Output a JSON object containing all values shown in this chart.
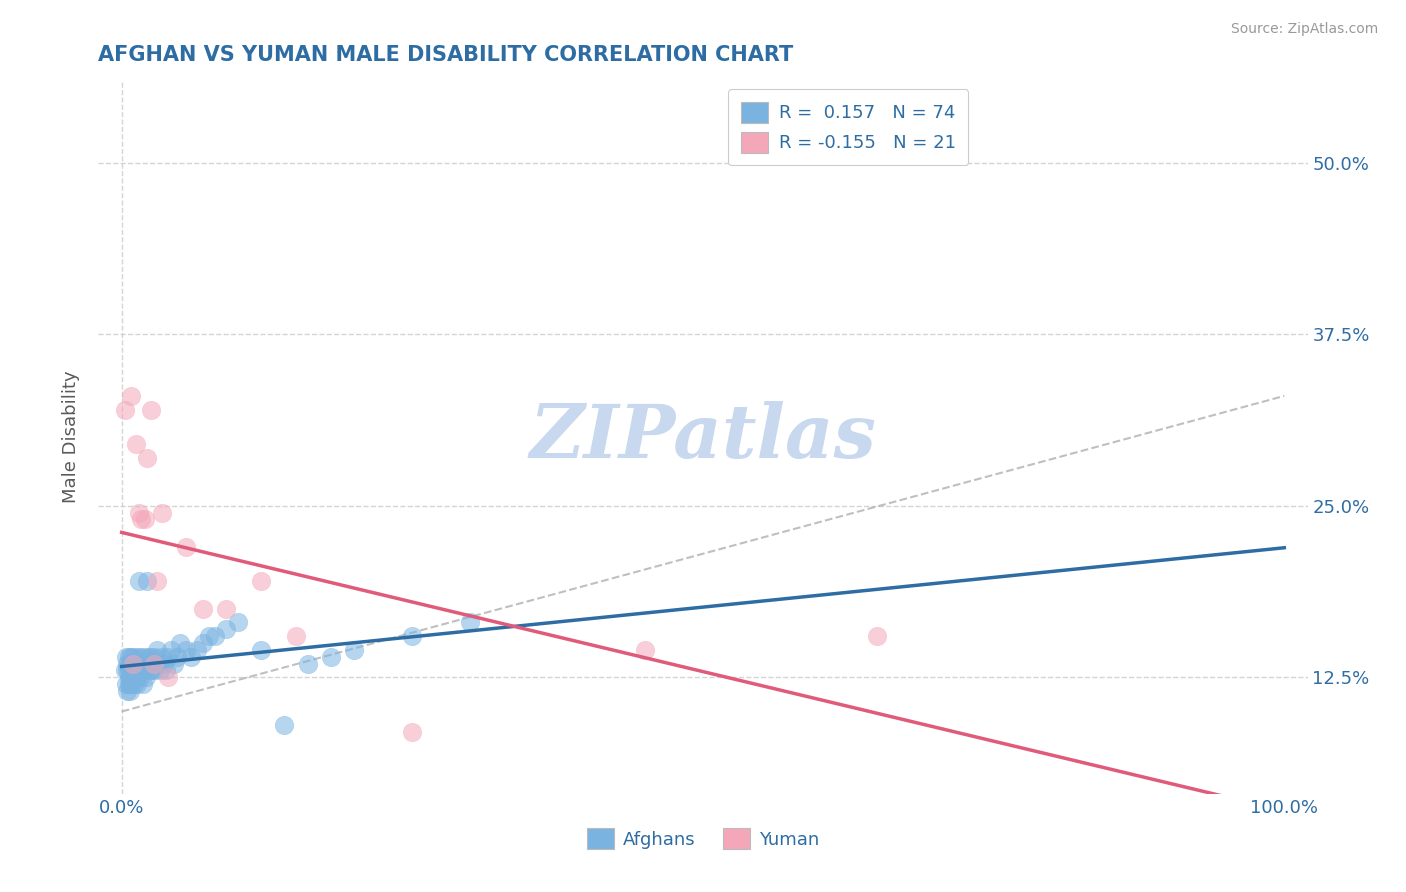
{
  "title": "AFGHAN VS YUMAN MALE DISABILITY CORRELATION CHART",
  "source": "Source: ZipAtlas.com",
  "xlabel_label": "Afghans",
  "xlabel2_label": "Yuman",
  "ylabel": "Male Disability",
  "xlim": [
    -0.02,
    1.02
  ],
  "ylim": [
    0.04,
    0.56
  ],
  "x_ticks": [
    0.0,
    1.0
  ],
  "x_tick_labels": [
    "0.0%",
    "100.0%"
  ],
  "y_ticks": [
    0.125,
    0.25,
    0.375,
    0.5
  ],
  "y_tick_labels": [
    "12.5%",
    "25.0%",
    "37.5%",
    "50.0%"
  ],
  "afghan_R": 0.157,
  "afghan_N": 74,
  "yuman_R": -0.155,
  "yuman_N": 21,
  "afghan_color": "#7ab3e0",
  "yuman_color": "#f4a7b9",
  "afghan_line_color": "#2e6da4",
  "yuman_line_color": "#e05a7a",
  "dashed_line_color": "#b0b0b0",
  "title_color": "#2e6da4",
  "axis_label_color": "#5a5a5a",
  "tick_color": "#2e6da4",
  "watermark_text": "ZIPatlas",
  "watermark_color": "#c8d8ee",
  "background_color": "#ffffff",
  "grid_color": "#d0d0d0",
  "afghans_x": [
    0.003,
    0.004,
    0.004,
    0.005,
    0.005,
    0.005,
    0.006,
    0.006,
    0.006,
    0.006,
    0.007,
    0.007,
    0.007,
    0.007,
    0.008,
    0.008,
    0.008,
    0.009,
    0.009,
    0.01,
    0.01,
    0.01,
    0.011,
    0.011,
    0.012,
    0.012,
    0.013,
    0.013,
    0.014,
    0.015,
    0.015,
    0.016,
    0.016,
    0.017,
    0.018,
    0.018,
    0.019,
    0.019,
    0.02,
    0.021,
    0.022,
    0.023,
    0.024,
    0.025,
    0.025,
    0.026,
    0.028,
    0.029,
    0.03,
    0.032,
    0.033,
    0.035,
    0.036,
    0.038,
    0.04,
    0.042,
    0.045,
    0.048,
    0.05,
    0.055,
    0.06,
    0.065,
    0.07,
    0.075,
    0.08,
    0.09,
    0.1,
    0.12,
    0.14,
    0.16,
    0.18,
    0.2,
    0.25,
    0.3
  ],
  "afghans_y": [
    0.13,
    0.12,
    0.14,
    0.115,
    0.13,
    0.135,
    0.12,
    0.125,
    0.13,
    0.14,
    0.115,
    0.12,
    0.125,
    0.135,
    0.13,
    0.12,
    0.14,
    0.125,
    0.135,
    0.13,
    0.125,
    0.14,
    0.12,
    0.135,
    0.13,
    0.125,
    0.14,
    0.12,
    0.135,
    0.13,
    0.195,
    0.125,
    0.14,
    0.13,
    0.135,
    0.12,
    0.14,
    0.13,
    0.135,
    0.125,
    0.195,
    0.14,
    0.13,
    0.13,
    0.14,
    0.135,
    0.13,
    0.14,
    0.145,
    0.135,
    0.13,
    0.14,
    0.135,
    0.13,
    0.14,
    0.145,
    0.135,
    0.14,
    0.15,
    0.145,
    0.14,
    0.145,
    0.15,
    0.155,
    0.155,
    0.16,
    0.165,
    0.145,
    0.09,
    0.135,
    0.14,
    0.145,
    0.155,
    0.165
  ],
  "yuman_x": [
    0.003,
    0.008,
    0.01,
    0.012,
    0.015,
    0.017,
    0.02,
    0.022,
    0.025,
    0.028,
    0.03,
    0.035,
    0.04,
    0.055,
    0.07,
    0.09,
    0.12,
    0.15,
    0.25,
    0.45,
    0.65
  ],
  "yuman_y": [
    0.32,
    0.33,
    0.135,
    0.295,
    0.245,
    0.24,
    0.24,
    0.285,
    0.32,
    0.135,
    0.195,
    0.245,
    0.125,
    0.22,
    0.175,
    0.175,
    0.195,
    0.155,
    0.085,
    0.145,
    0.155
  ]
}
